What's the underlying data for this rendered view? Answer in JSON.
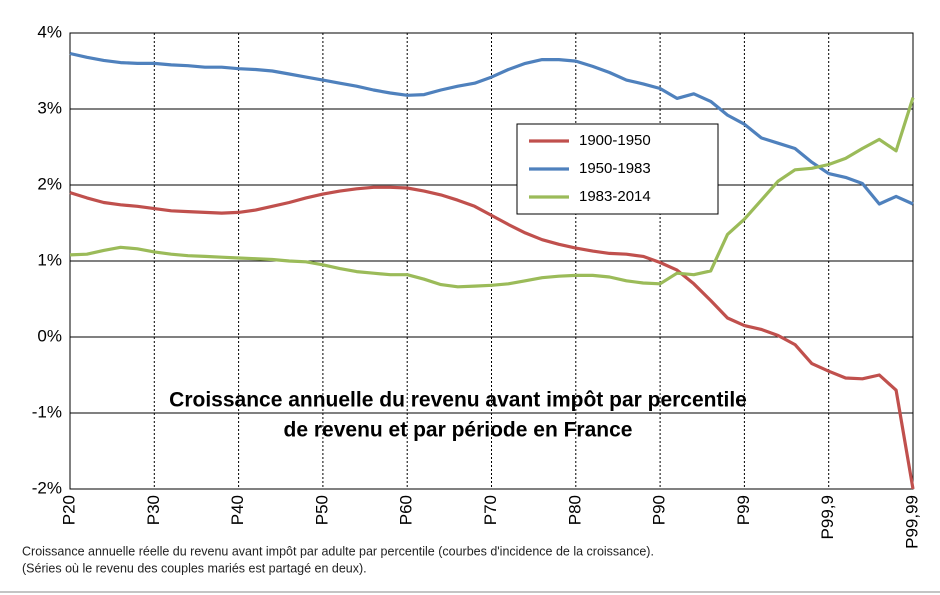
{
  "chart_data": {
    "type": "line",
    "title": [
      "Croissance annuelle du revenu avant impôt par percentile",
      "de revenu et par période en France"
    ],
    "note": [
      "Croissance annuelle  réelle du revenu  avant impôt par adulte par percentile (courbes d'incidence de la croissance).",
      "(Séries où le revenu  des couples mariés est partagé en deux)."
    ],
    "categories": [
      "P20",
      null,
      null,
      null,
      null,
      "P30",
      null,
      null,
      null,
      null,
      "P40",
      null,
      null,
      null,
      null,
      "P50",
      null,
      null,
      null,
      null,
      "P60",
      null,
      null,
      null,
      null,
      "P70",
      null,
      null,
      null,
      null,
      "P80",
      null,
      null,
      null,
      null,
      "P90",
      null,
      null,
      null,
      null,
      "P99",
      null,
      null,
      null,
      null,
      "P99,9",
      null,
      null,
      null,
      null,
      "P99,99"
    ],
    "series": [
      {
        "name": "1900-1950",
        "color": "#c0504d",
        "values": [
          1.9,
          1.83,
          1.77,
          1.74,
          1.72,
          1.69,
          1.66,
          1.65,
          1.64,
          1.63,
          1.64,
          1.67,
          1.72,
          1.77,
          1.83,
          1.88,
          1.92,
          1.95,
          1.97,
          1.97,
          1.96,
          1.92,
          1.87,
          1.8,
          1.72,
          1.6,
          1.48,
          1.37,
          1.28,
          1.22,
          1.17,
          1.13,
          1.1,
          1.09,
          1.06,
          0.98,
          0.88,
          0.7,
          0.48,
          0.25,
          0.15,
          0.1,
          0.02,
          -0.1,
          -0.35,
          -0.45,
          -0.54,
          -0.55,
          -0.5,
          -0.7,
          -2.0
        ]
      },
      {
        "name": "1950-1983",
        "color": "#4f81bd",
        "values": [
          3.73,
          3.68,
          3.64,
          3.61,
          3.6,
          3.6,
          3.58,
          3.57,
          3.55,
          3.55,
          3.53,
          3.52,
          3.5,
          3.46,
          3.42,
          3.38,
          3.34,
          3.3,
          3.25,
          3.21,
          3.18,
          3.19,
          3.25,
          3.3,
          3.34,
          3.42,
          3.52,
          3.6,
          3.65,
          3.65,
          3.63,
          3.56,
          3.48,
          3.38,
          3.33,
          3.27,
          3.14,
          3.2,
          3.1,
          2.92,
          2.8,
          2.62,
          2.55,
          2.48,
          2.3,
          2.15,
          2.1,
          2.02,
          1.75,
          1.85,
          1.75
        ]
      },
      {
        "name": "1983-2014",
        "color": "#9bbb59",
        "values": [
          1.08,
          1.09,
          1.14,
          1.18,
          1.16,
          1.12,
          1.09,
          1.07,
          1.06,
          1.05,
          1.04,
          1.03,
          1.02,
          1.0,
          0.99,
          0.95,
          0.9,
          0.86,
          0.84,
          0.82,
          0.82,
          0.76,
          0.69,
          0.66,
          0.67,
          0.68,
          0.7,
          0.74,
          0.78,
          0.8,
          0.81,
          0.81,
          0.79,
          0.74,
          0.71,
          0.7,
          0.84,
          0.82,
          0.87,
          1.35,
          1.55,
          1.8,
          2.05,
          2.2,
          2.22,
          2.27,
          2.35,
          2.48,
          2.6,
          2.45,
          3.15
        ]
      }
    ],
    "ylim": [
      -2,
      4
    ],
    "yticks": [
      {
        "value": -2,
        "label": "-2%"
      },
      {
        "value": -1,
        "label": "-1%"
      },
      {
        "value": 0,
        "label": "0%"
      },
      {
        "value": 1,
        "label": "1%"
      },
      {
        "value": 2,
        "label": "2%"
      },
      {
        "value": 3,
        "label": "3%"
      },
      {
        "value": 4,
        "label": "4%"
      }
    ],
    "grid": true,
    "legend": "upper right"
  }
}
